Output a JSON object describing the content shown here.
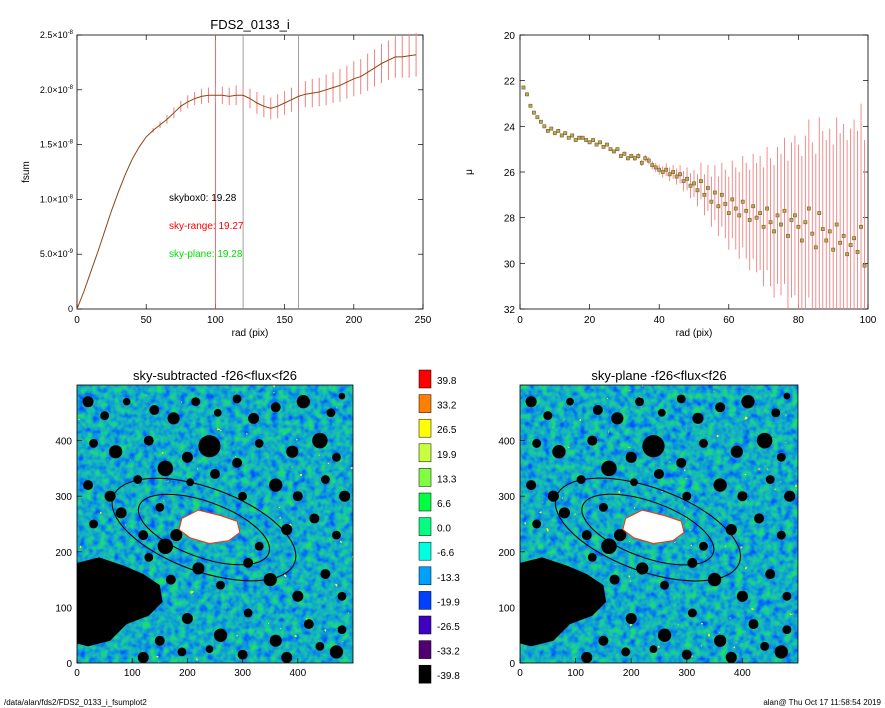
{
  "colors": {
    "profile": "#8b4513",
    "error_bar": "#f08080",
    "marker_edge": "#7a5a20",
    "marker_fill": "#b8a860",
    "sky_range_line": "#ff4040",
    "grid_line": "#888888",
    "ann_skybox0": "#000000",
    "ann_sky_range": "#ff0000",
    "ann_sky_plane": "#00e000",
    "ellipse": "#000000"
  },
  "footer": {
    "path": "/data/alan/fds2/FDS2_0133_i_fsumplot2",
    "stamp": "alan@  Thu Oct 17 11:58:54 2019"
  },
  "chart_data": [
    {
      "type": "line",
      "title": "FDS2_0133_i",
      "xlabel": "rad (pix)",
      "ylabel": "fsum",
      "xlim": [
        0,
        250
      ],
      "ylim": [
        0,
        2.5e-08
      ],
      "x_ticks": [
        0,
        50,
        100,
        150,
        200,
        250
      ],
      "x_tick_labels": [
        "0",
        "50",
        "100",
        "150",
        "200",
        "250"
      ],
      "y_ticks": [
        0,
        5e-09,
        1e-08,
        1.5e-08,
        2e-08,
        2.5e-08
      ],
      "y_tick_labels": [
        {
          "base": "0",
          "exp": ""
        },
        {
          "base": "5.0×10",
          "exp": "-9"
        },
        {
          "base": "1.0×10",
          "exp": "-8"
        },
        {
          "base": "1.5×10",
          "exp": "-8"
        },
        {
          "base": "2.0×10",
          "exp": "-8"
        },
        {
          "base": "2.5×10",
          "exp": "-8"
        }
      ],
      "x": [
        0,
        5,
        10,
        15,
        20,
        25,
        30,
        35,
        40,
        45,
        50,
        55,
        60,
        65,
        70,
        75,
        80,
        85,
        90,
        95,
        100,
        105,
        110,
        115,
        120,
        125,
        130,
        135,
        140,
        145,
        150,
        155,
        160,
        165,
        170,
        175,
        180,
        185,
        190,
        195,
        200,
        205,
        210,
        215,
        220,
        225,
        230,
        235,
        240,
        245
      ],
      "y": [
        0,
        1.6e-09,
        3.4e-09,
        5.2e-09,
        7.1e-09,
        9e-09,
        1.07e-08,
        1.23e-08,
        1.37e-08,
        1.48e-08,
        1.57e-08,
        1.63e-08,
        1.68e-08,
        1.73e-08,
        1.79e-08,
        1.85e-08,
        1.89e-08,
        1.92e-08,
        1.94e-08,
        1.95e-08,
        1.95e-08,
        1.95e-08,
        1.94e-08,
        1.95e-08,
        1.95e-08,
        1.92e-08,
        1.88e-08,
        1.85e-08,
        1.83e-08,
        1.85e-08,
        1.88e-08,
        1.91e-08,
        1.94e-08,
        1.96e-08,
        1.97e-08,
        1.98e-08,
        2e-08,
        2.02e-08,
        2.04e-08,
        2.07e-08,
        2.1e-08,
        2.12e-08,
        2.16e-08,
        2.2e-08,
        2.24e-08,
        2.27e-08,
        2.3e-08,
        2.3e-08,
        2.31e-08,
        2.32e-08
      ],
      "err": [
        0,
        0,
        0,
        0,
        0,
        0,
        0,
        0,
        0,
        0,
        0,
        2e-10,
        3e-10,
        4e-10,
        5e-10,
        5e-10,
        6e-10,
        6e-10,
        7e-10,
        7e-10,
        8e-10,
        8e-10,
        8e-10,
        9e-10,
        9e-10,
        9e-10,
        1e-09,
        1e-09,
        1e-09,
        1.1e-09,
        1.1e-09,
        1.1e-09,
        1.2e-09,
        1.2e-09,
        1.3e-09,
        1.3e-09,
        1.4e-09,
        1.4e-09,
        1.5e-09,
        1.5e-09,
        1.6e-09,
        1.6e-09,
        1.7e-09,
        1.7e-09,
        1.8e-09,
        1.8e-09,
        1.9e-09,
        1.9e-09,
        2e-09,
        2e-09
      ],
      "vlines": [
        {
          "x": 100,
          "color": "sky_range_line"
        },
        {
          "x": 120,
          "color": "grid_line"
        },
        {
          "x": 160,
          "color": "grid_line"
        }
      ],
      "annotations": [
        {
          "text": "skybox0: 19.28",
          "color": "ann_skybox0"
        },
        {
          "text": "sky-range: 19.27",
          "color": "ann_sky_range"
        },
        {
          "text": "sky-plane: 19.28",
          "color": "ann_sky_plane"
        }
      ]
    },
    {
      "type": "scatter",
      "title": "",
      "xlabel": "rad (pix)",
      "ylabel": "μ",
      "xlim": [
        0,
        100
      ],
      "ylim": [
        32,
        20
      ],
      "y_reversed": true,
      "x_ticks": [
        0,
        20,
        40,
        60,
        80,
        100
      ],
      "x_tick_labels": [
        "0",
        "20",
        "40",
        "60",
        "80",
        "100"
      ],
      "y_ticks": [
        20,
        22,
        24,
        26,
        28,
        30,
        32
      ],
      "y_tick_labels": [
        "20",
        "22",
        "24",
        "26",
        "28",
        "30",
        "32"
      ],
      "x": [
        1,
        2,
        3,
        4,
        5,
        6,
        7,
        8,
        9,
        10,
        11,
        12,
        13,
        14,
        15,
        16,
        17,
        18,
        19,
        20,
        21,
        22,
        23,
        24,
        25,
        26,
        27,
        28,
        29,
        30,
        31,
        32,
        33,
        34,
        35,
        36,
        37,
        38,
        39,
        40,
        41,
        42,
        43,
        44,
        45,
        46,
        47,
        48,
        49,
        50,
        51,
        52,
        53,
        54,
        55,
        56,
        57,
        58,
        59,
        60,
        61,
        62,
        63,
        64,
        65,
        66,
        67,
        68,
        69,
        70,
        71,
        72,
        73,
        74,
        75,
        76,
        77,
        78,
        79,
        80,
        81,
        82,
        83,
        84,
        85,
        86,
        87,
        88,
        89,
        90,
        91,
        92,
        93,
        94,
        95,
        96,
        97,
        98,
        99
      ],
      "y": [
        22.3,
        22.6,
        23.1,
        23.4,
        23.6,
        23.8,
        24.0,
        24.2,
        24.1,
        24.3,
        24.2,
        24.4,
        24.3,
        24.5,
        24.4,
        24.6,
        24.5,
        24.5,
        24.6,
        24.7,
        24.6,
        24.8,
        24.7,
        24.9,
        24.8,
        25.0,
        25.1,
        25.0,
        25.3,
        25.2,
        25.4,
        25.3,
        25.4,
        25.3,
        25.6,
        25.4,
        25.5,
        25.7,
        25.8,
        25.9,
        26.0,
        25.9,
        26.1,
        26.0,
        26.2,
        26.1,
        26.4,
        26.3,
        26.6,
        26.5,
        26.8,
        26.4,
        27.0,
        26.7,
        27.3,
        26.9,
        27.5,
        27.0,
        27.4,
        27.8,
        27.2,
        27.6,
        27.9,
        27.3,
        27.7,
        28.1,
        27.5,
        28.0,
        27.8,
        28.4,
        27.6,
        28.2,
        28.6,
        27.9,
        28.3,
        27.7,
        28.8,
        28.1,
        27.9,
        28.4,
        29.0,
        28.2,
        27.6,
        28.7,
        29.3,
        27.8,
        28.5,
        29.0,
        28.6,
        29.4,
        28.3,
        29.1,
        28.8,
        29.6,
        29.2,
        28.9,
        29.5,
        28.4,
        30.1
      ],
      "err": [
        0.05,
        0.05,
        0.05,
        0.05,
        0.05,
        0.05,
        0.05,
        0.05,
        0.05,
        0.05,
        0.05,
        0.05,
        0.05,
        0.05,
        0.05,
        0.05,
        0.05,
        0.05,
        0.05,
        0.05,
        0.06,
        0.06,
        0.06,
        0.06,
        0.07,
        0.07,
        0.07,
        0.08,
        0.08,
        0.09,
        0.1,
        0.1,
        0.12,
        0.12,
        0.14,
        0.15,
        0.16,
        0.18,
        0.2,
        0.22,
        0.25,
        0.28,
        0.3,
        0.3,
        0.35,
        0.4,
        0.45,
        0.5,
        0.55,
        0.6,
        0.7,
        0.8,
        0.9,
        1.0,
        1.1,
        1.2,
        1.3,
        1.4,
        1.5,
        1.6,
        1.7,
        1.8,
        1.9,
        2.0,
        2.1,
        2.2,
        2.3,
        2.4,
        2.5,
        2.6,
        2.7,
        2.8,
        2.9,
        3.0,
        3.1,
        3.2,
        3.3,
        3.4,
        3.5,
        3.6,
        3.7,
        3.8,
        3.9,
        4.0,
        4.1,
        4.2,
        4.3,
        4.4,
        4.5,
        4.6,
        4.7,
        4.8,
        4.9,
        5.0,
        5.1,
        5.2,
        5.3,
        5.4,
        5.5
      ]
    },
    {
      "type": "heatmap",
      "title": "sky-subtracted -f26<flux<f26",
      "xlim": [
        0,
        500
      ],
      "ylim": [
        0,
        500
      ],
      "x_ticks": [
        0,
        100,
        200,
        300,
        400
      ],
      "x_tick_labels": [
        "0",
        "100",
        "200",
        "300",
        "400"
      ],
      "y_ticks": [
        0,
        100,
        200,
        300,
        400
      ],
      "y_tick_labels": [
        "0",
        "100",
        "200",
        "300",
        "400"
      ],
      "ellipses": [
        {
          "cx": 230,
          "cy": 240,
          "rx": 175,
          "ry": 75,
          "angle_deg": -20
        },
        {
          "cx": 230,
          "cy": 240,
          "rx": 125,
          "ry": 50,
          "angle_deg": -20
        }
      ]
    },
    {
      "type": "heatmap",
      "title": "sky-plane -f26<flux<f26",
      "xlim": [
        0,
        500
      ],
      "ylim": [
        0,
        500
      ],
      "x_ticks": [
        0,
        100,
        200,
        300,
        400
      ],
      "x_tick_labels": [
        "0",
        "100",
        "200",
        "300",
        "400"
      ],
      "y_ticks": [
        0,
        100,
        200,
        300,
        400
      ],
      "y_tick_labels": [
        "0",
        "100",
        "200",
        "300",
        "400"
      ],
      "ellipses": [
        {
          "cx": 230,
          "cy": 240,
          "rx": 175,
          "ry": 75,
          "angle_deg": -20
        },
        {
          "cx": 230,
          "cy": 240,
          "rx": 125,
          "ry": 50,
          "angle_deg": -20
        }
      ]
    }
  ],
  "colorbar": {
    "levels": [
      {
        "label": "39.8",
        "color": "#ff0000"
      },
      {
        "label": "33.2",
        "color": "#ff8000"
      },
      {
        "label": "26.5",
        "color": "#ffff00"
      },
      {
        "label": "19.9",
        "color": "#c8ff40"
      },
      {
        "label": "13.3",
        "color": "#80ff40"
      },
      {
        "label": "6.6",
        "color": "#00ff40"
      },
      {
        "label": "0.0",
        "color": "#00ff80"
      },
      {
        "label": "-6.6",
        "color": "#00ffe0"
      },
      {
        "label": "-13.3",
        "color": "#00a0ff"
      },
      {
        "label": "-19.9",
        "color": "#0040ff"
      },
      {
        "label": "-26.5",
        "color": "#4000c0"
      },
      {
        "label": "-33.2",
        "color": "#500070"
      },
      {
        "label": "-39.8",
        "color": "#000000"
      }
    ]
  }
}
